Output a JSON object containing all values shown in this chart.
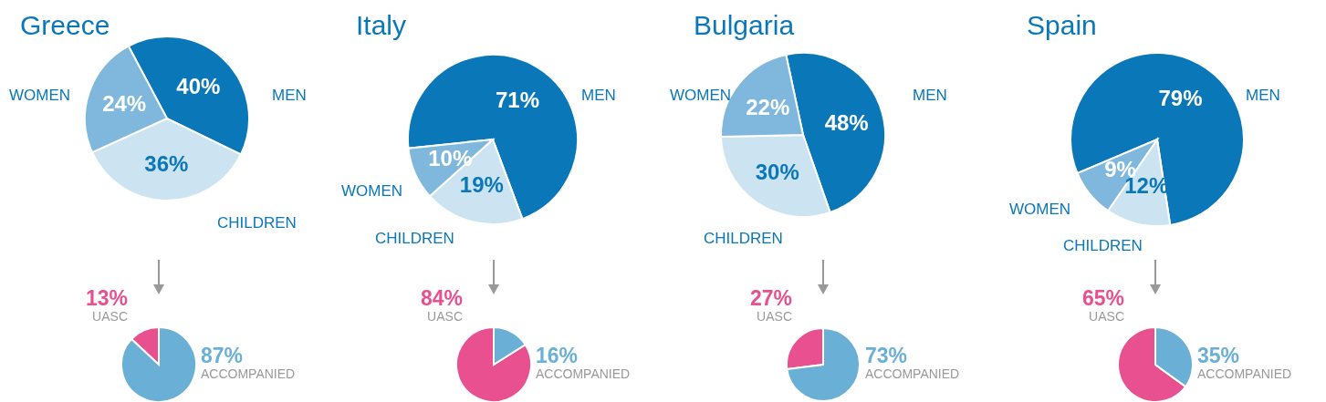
{
  "chart_data": [
    {
      "type": "pie",
      "title": "Greece",
      "categories": [
        "MEN",
        "CHILDREN",
        "WOMEN"
      ],
      "values": [
        40,
        36,
        24
      ],
      "colors": [
        "#0a77b9",
        "#cce3f1",
        "#7fb8dc"
      ],
      "value_labels": [
        "40%",
        "36%",
        "24%"
      ]
    },
    {
      "type": "pie",
      "title": "Italy",
      "categories": [
        "MEN",
        "CHILDREN",
        "WOMEN"
      ],
      "values": [
        71,
        19,
        10
      ],
      "colors": [
        "#0a77b9",
        "#cce3f1",
        "#7fb8dc"
      ],
      "value_labels": [
        "71%",
        "19%",
        "10%"
      ]
    },
    {
      "type": "pie",
      "title": "Bulgaria",
      "categories": [
        "MEN",
        "CHILDREN",
        "WOMEN"
      ],
      "values": [
        48,
        30,
        22
      ],
      "colors": [
        "#0a77b9",
        "#cce3f1",
        "#7fb8dc"
      ],
      "value_labels": [
        "48%",
        "30%",
        "22%"
      ]
    },
    {
      "type": "pie",
      "title": "Spain",
      "categories": [
        "MEN",
        "CHILDREN",
        "WOMEN"
      ],
      "values": [
        79,
        12,
        9
      ],
      "colors": [
        "#0a77b9",
        "#cce3f1",
        "#7fb8dc"
      ],
      "value_labels": [
        "79%",
        "12%",
        "9%"
      ]
    },
    {
      "type": "pie",
      "categories": [
        "UASC",
        "ACCOMPANIED"
      ],
      "values": [
        13,
        87
      ],
      "colors": [
        "#e8508f",
        "#6aafd6"
      ],
      "value_labels": [
        "13%",
        "87%"
      ]
    },
    {
      "type": "pie",
      "categories": [
        "UASC",
        "ACCOMPANIED"
      ],
      "values": [
        84,
        16
      ],
      "colors": [
        "#e8508f",
        "#6aafd6"
      ],
      "value_labels": [
        "84%",
        "16%"
      ]
    },
    {
      "type": "pie",
      "categories": [
        "UASC",
        "ACCOMPANIED"
      ],
      "values": [
        27,
        73
      ],
      "colors": [
        "#e8508f",
        "#6aafd6"
      ],
      "value_labels": [
        "27%",
        "73%"
      ]
    },
    {
      "type": "pie",
      "categories": [
        "UASC",
        "ACCOMPANIED"
      ],
      "values": [
        65,
        35
      ],
      "colors": [
        "#e8508f",
        "#6aafd6"
      ],
      "value_labels": [
        "65%",
        "35%"
      ]
    }
  ]
}
